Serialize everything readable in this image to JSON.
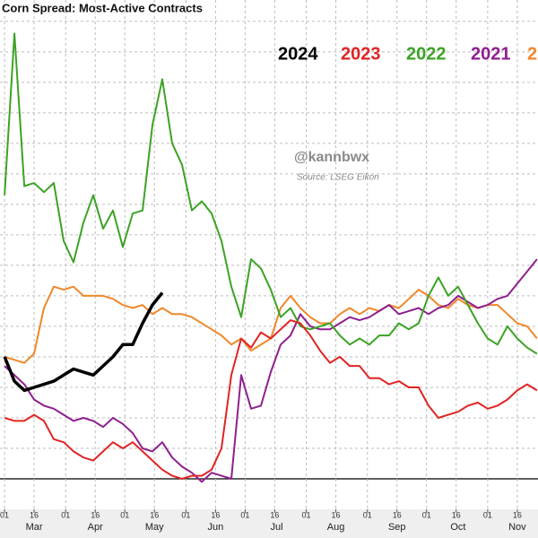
{
  "chart_data": {
    "type": "line",
    "title": "Corn Spread: Most-Active Contracts",
    "annotations": [
      "@kannbwx",
      "Source: LSEG Eikon"
    ],
    "x": [
      0,
      5,
      10,
      15,
      20,
      25,
      30,
      35,
      40,
      45,
      50,
      55,
      60,
      65,
      70,
      75,
      80,
      85,
      90,
      95,
      100,
      105,
      110,
      115,
      120,
      125,
      130,
      135,
      140,
      145,
      150,
      155,
      160,
      165,
      170,
      175,
      180,
      185,
      190,
      195,
      200,
      205,
      210,
      215,
      220,
      225,
      230,
      235,
      240,
      245,
      250,
      255,
      260,
      265,
      270
    ],
    "xlim": [
      -2.3,
      270.5
    ],
    "xticks": [
      {
        "value": 0,
        "label": "01"
      },
      {
        "value": 15,
        "label": "16"
      },
      {
        "value": 31,
        "label": "01"
      },
      {
        "value": 46,
        "label": "16"
      },
      {
        "value": 61,
        "label": "01"
      },
      {
        "value": 76,
        "label": "16"
      },
      {
        "value": 92,
        "label": "01"
      },
      {
        "value": 107,
        "label": "16"
      },
      {
        "value": 122,
        "label": "01"
      },
      {
        "value": 137,
        "label": "16"
      },
      {
        "value": 153,
        "label": "01"
      },
      {
        "value": 168,
        "label": "16"
      },
      {
        "value": 184,
        "label": "01"
      },
      {
        "value": 199,
        "label": "16"
      },
      {
        "value": 214,
        "label": "01"
      },
      {
        "value": 229,
        "label": "16"
      },
      {
        "value": 245,
        "label": "01"
      },
      {
        "value": 260,
        "label": "16"
      }
    ],
    "months": [
      {
        "value": 15,
        "label": "Mar"
      },
      {
        "value": 46,
        "label": "Apr"
      },
      {
        "value": 76,
        "label": "May"
      },
      {
        "value": 107,
        "label": "Jun"
      },
      {
        "value": 138,
        "label": "Jul"
      },
      {
        "value": 168,
        "label": "Aug"
      },
      {
        "value": 199,
        "label": "Sep"
      },
      {
        "value": 230,
        "label": "Oct"
      },
      {
        "value": 260,
        "label": "Nov"
      }
    ],
    "ylim": [
      -1,
      15.7
    ],
    "yticks": [
      0,
      1,
      2,
      3,
      4,
      5,
      6,
      7,
      8,
      9,
      10,
      11,
      12,
      13,
      14,
      15
    ],
    "grid": true,
    "legend": "top-right",
    "series": [
      {
        "name": "2024",
        "color": "#000000",
        "values": [
          4.0,
          3.2,
          2.9,
          3.0,
          3.1,
          3.2,
          3.4,
          3.6,
          3.5,
          3.4,
          3.7,
          4.0,
          4.4,
          4.4,
          5.1,
          5.7,
          6.1,
          null,
          null,
          null,
          null,
          null,
          null,
          null,
          null,
          null,
          null,
          null,
          null,
          null,
          null,
          null,
          null,
          null,
          null,
          null,
          null,
          null,
          null,
          null,
          null,
          null,
          null,
          null,
          null,
          null,
          null,
          null,
          null,
          null,
          null,
          null,
          null,
          null,
          null
        ]
      },
      {
        "name": "2023",
        "color": "#e02424",
        "values": [
          2.0,
          1.9,
          1.9,
          2.1,
          1.9,
          1.3,
          1.2,
          0.9,
          0.7,
          0.6,
          0.9,
          1.2,
          1.0,
          1.2,
          0.9,
          0.6,
          0.3,
          0.1,
          0.0,
          0.1,
          0.1,
          0.3,
          1.0,
          3.4,
          4.6,
          4.3,
          4.8,
          4.6,
          4.9,
          5.2,
          5.1,
          4.7,
          4.2,
          3.8,
          4.0,
          3.7,
          3.7,
          3.3,
          3.3,
          3.1,
          3.2,
          3.0,
          3.0,
          2.4,
          2.0,
          2.1,
          2.2,
          2.4,
          2.5,
          2.3,
          2.4,
          2.6,
          2.9,
          3.1,
          2.9
        ]
      },
      {
        "name": "2022",
        "color": "#3ca324",
        "values": [
          9.3,
          14.6,
          9.6,
          9.7,
          9.4,
          9.7,
          7.8,
          7.1,
          8.4,
          9.3,
          8.2,
          8.8,
          7.6,
          8.7,
          8.8,
          11.6,
          13.1,
          11.0,
          10.3,
          8.8,
          9.1,
          8.7,
          7.8,
          6.3,
          5.3,
          7.2,
          6.9,
          6.2,
          5.3,
          5.6,
          5.0,
          4.9,
          5.0,
          5.1,
          4.7,
          4.4,
          4.6,
          4.4,
          4.7,
          4.7,
          5.1,
          4.9,
          5.1,
          6.0,
          6.6,
          6.0,
          6.3,
          5.7,
          5.1,
          4.6,
          4.4,
          5.0,
          4.6,
          4.3,
          4.1
        ]
      },
      {
        "name": "2021",
        "color": "#8e1f8e",
        "values": [
          3.7,
          3.4,
          3.1,
          2.6,
          2.4,
          2.3,
          2.1,
          1.9,
          2.0,
          1.9,
          1.7,
          2.0,
          1.8,
          1.5,
          1.0,
          0.9,
          1.2,
          0.7,
          0.4,
          0.2,
          -0.1,
          0.2,
          0.1,
          0.0,
          3.4,
          2.3,
          2.4,
          3.5,
          4.4,
          4.7,
          5.4,
          5.0,
          4.9,
          4.9,
          5.1,
          5.3,
          5.2,
          5.3,
          5.5,
          5.7,
          5.4,
          5.5,
          5.6,
          5.4,
          5.6,
          5.7,
          6.0,
          5.8,
          5.6,
          5.7,
          5.9,
          6.0,
          6.4,
          6.8,
          7.2
        ]
      },
      {
        "name": "2",
        "color": "#f0872a",
        "values": [
          4.0,
          3.9,
          3.8,
          4.1,
          5.6,
          6.3,
          6.2,
          6.3,
          6.0,
          6.0,
          6.0,
          5.9,
          5.7,
          5.6,
          5.7,
          5.4,
          5.6,
          5.4,
          5.4,
          5.3,
          5.1,
          4.9,
          4.7,
          4.4,
          4.6,
          4.2,
          4.4,
          4.6,
          5.6,
          6.0,
          5.6,
          5.3,
          5.1,
          5.1,
          5.4,
          5.6,
          5.4,
          5.6,
          5.5,
          5.7,
          5.6,
          5.9,
          6.2,
          6.0,
          5.7,
          5.6,
          5.9,
          5.7,
          5.6,
          5.7,
          5.7,
          5.4,
          5.1,
          5.0,
          4.6
        ]
      }
    ]
  }
}
